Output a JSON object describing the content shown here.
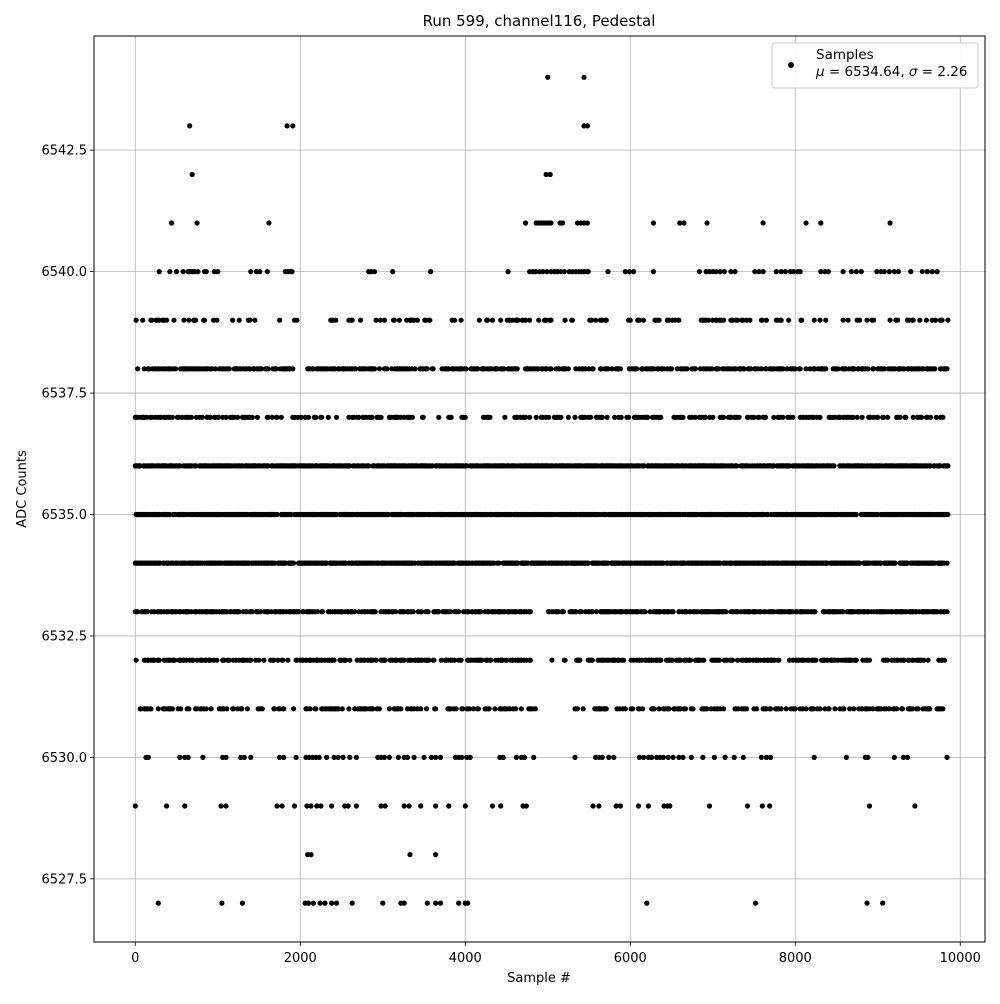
{
  "chart_data": {
    "type": "scatter",
    "title": "Run 599, channel116, Pedestal",
    "xlabel": "Sample #",
    "ylabel": "ADC Counts",
    "xlim": [
      -500,
      10300
    ],
    "ylim": [
      6526.2,
      6544.85
    ],
    "xticks": [
      0,
      2000,
      4000,
      6000,
      8000,
      10000
    ],
    "xtick_labels": [
      "0",
      "2000",
      "4000",
      "6000",
      "8000",
      "10000"
    ],
    "yticks": [
      6527.5,
      6530.0,
      6532.5,
      6535.0,
      6537.5,
      6540.0,
      6542.5
    ],
    "ytick_labels": [
      "6527.5",
      "6530.0",
      "6532.5",
      "6535.0",
      "6537.5",
      "6540.0",
      "6542.5"
    ],
    "grid": true,
    "marker_color": "#000000",
    "legend": {
      "placement": "top-right",
      "label": "Samples",
      "mu_symbol": "μ",
      "mu_text": " = 6534.64, ",
      "sigma_symbol": "σ",
      "sigma_text": " = 2.26"
    },
    "series": [
      {
        "name": "Samples",
        "x_range": [
          0,
          9850
        ],
        "sample_count": 9850,
        "mean": 6534.64,
        "std": 2.26,
        "values": [
          {
            "y": 6527,
            "x": [
              280,
              1050,
              1300,
              2060,
              2100,
              2160,
              2240,
              2300,
              2380,
              2440,
              2630,
              3000,
              3220,
              3260,
              3540,
              3640,
              3700,
              3920,
              4000,
              4030,
              6200,
              7520,
              8870,
              9060
            ]
          },
          {
            "y": 6528,
            "x": [
              2090,
              2130,
              3330,
              3640
            ]
          },
          {
            "y": 6529,
            "x": [
              0,
              380,
              600,
              1040,
              1100,
              1720,
              1780,
              1930,
              2080,
              2130,
              2200,
              2250,
              2380,
              2540,
              2580,
              2680,
              2980,
              3030,
              3260,
              3320,
              3460,
              3640,
              3800,
              4000,
              4330,
              4430,
              4700,
              4740,
              5550,
              5620,
              5830,
              5880,
              6100,
              6220,
              6410,
              6450,
              6480,
              6960,
              7420,
              7600,
              7690,
              8900,
              9450
            ]
          },
          {
            "y": 6530,
            "x": [
              130,
              160,
              540,
              600,
              640,
              820,
              1060,
              1100,
              1280,
              1320,
              1400,
              1750,
              1800,
              1950,
              2070,
              2110,
              2150,
              2190,
              2230,
              2320,
              2410,
              2460,
              2520,
              2600,
              2680,
              2940,
              2980,
              3020,
              3080,
              3190,
              3260,
              3300,
              3380,
              3500,
              3590,
              3640,
              3700,
              3880,
              3920,
              3960,
              4020,
              4060,
              4420,
              4460,
              4620,
              4680,
              4720,
              4830,
              5330,
              5580,
              5620,
              5660,
              5740,
              5800,
              6110,
              6160,
              6220,
              6260,
              6320,
              6360,
              6400,
              6460,
              6520,
              6590,
              6640,
              6740,
              6880,
              7020,
              7150,
              7260,
              7370,
              7590,
              7650,
              7700,
              8230,
              8620,
              8850,
              8880,
              9200,
              9310,
              9360,
              9840
            ]
          },
          {
            "y": 6531,
            "density": 0.3,
            "gaps": [
              [
                2000,
                2060
              ],
              [
                4860,
                5270
              ],
              [
                5450,
                5550
              ],
              [
                6800,
                6850
              ],
              [
                7150,
                7220
              ]
            ]
          },
          {
            "y": 6532,
            "density": 0.4,
            "gaps": [
              [
                4800,
                5030
              ],
              [
                5070,
                5190
              ],
              [
                5240,
                5330
              ],
              [
                5400,
                5460
              ],
              [
                6920,
                6980
              ],
              [
                8920,
                9060
              ]
            ]
          },
          {
            "y": 6533,
            "density": 0.55,
            "gaps": [
              [
                4800,
                4990
              ],
              [
                5200,
                5250
              ]
            ]
          },
          {
            "y": 6534,
            "density": 0.7,
            "gaps": []
          },
          {
            "y": 6535,
            "density": 0.75,
            "gaps": []
          },
          {
            "y": 6536,
            "density": 0.7,
            "gaps": []
          },
          {
            "y": 6537,
            "density": 0.25,
            "gaps": [
              [
                2480,
                2560
              ],
              [
                3870,
                3940
              ],
              [
                4120,
                4200
              ],
              [
                6380,
                6470
              ]
            ]
          },
          {
            "y": 6538,
            "density": 0.45,
            "gaps": [
              [
                1980,
                2080
              ],
              [
                3620,
                3680
              ],
              [
                5900,
                5980
              ]
            ]
          },
          {
            "y": 6539,
            "density": 0.16,
            "gaps": [
              [
                2000,
                2240
              ],
              [
                3620,
                3800
              ],
              [
                4000,
                4120
              ],
              [
                5780,
                5920
              ],
              [
                6620,
                6660
              ]
            ]
          },
          {
            "y": 6540,
            "x": [
              290,
              420,
              500,
              580,
              640,
              660,
              690,
              720,
              760,
              840,
              860,
              960,
              1000,
              1400,
              1470,
              1510,
              1600,
              1820,
              1850,
              1880,
              1900,
              2830,
              2860,
              2900,
              3120,
              3580,
              4520,
              4780,
              4820,
              4850,
              4900,
              4940,
              4990,
              5040,
              5080,
              5120,
              5160,
              5200,
              5260,
              5300,
              5340,
              5380,
              5410,
              5440,
              5470,
              5490,
              5730,
              5940,
              5990,
              6040,
              6280,
              6840,
              6920,
              6960,
              7000,
              7040,
              7090,
              7140,
              7220,
              7270,
              7510,
              7560,
              7610,
              7770,
              7830,
              7880,
              7940,
              7980,
              8030,
              8060,
              8310,
              8360,
              8400,
              8580,
              8680,
              8740,
              8800,
              8990,
              9040,
              9080,
              9140,
              9200,
              9250,
              9400,
              9540,
              9600,
              9660,
              9720
            ]
          },
          {
            "y": 6541,
            "x": [
              440,
              750,
              1620,
              4730,
              4860,
              4890,
              4920,
              4950,
              4980,
              5010,
              5040,
              5150,
              5180,
              5360,
              5400,
              5440,
              5480,
              6280,
              6600,
              6650,
              6930,
              7610,
              8130,
              8310,
              9150
            ]
          },
          {
            "y": 6542,
            "x": [
              690,
              4980,
              5030
            ]
          },
          {
            "y": 6543,
            "x": [
              660,
              1840,
              1910,
              5440,
              5480
            ]
          },
          {
            "y": 6544,
            "x": [
              5000,
              5440
            ]
          }
        ]
      }
    ]
  }
}
